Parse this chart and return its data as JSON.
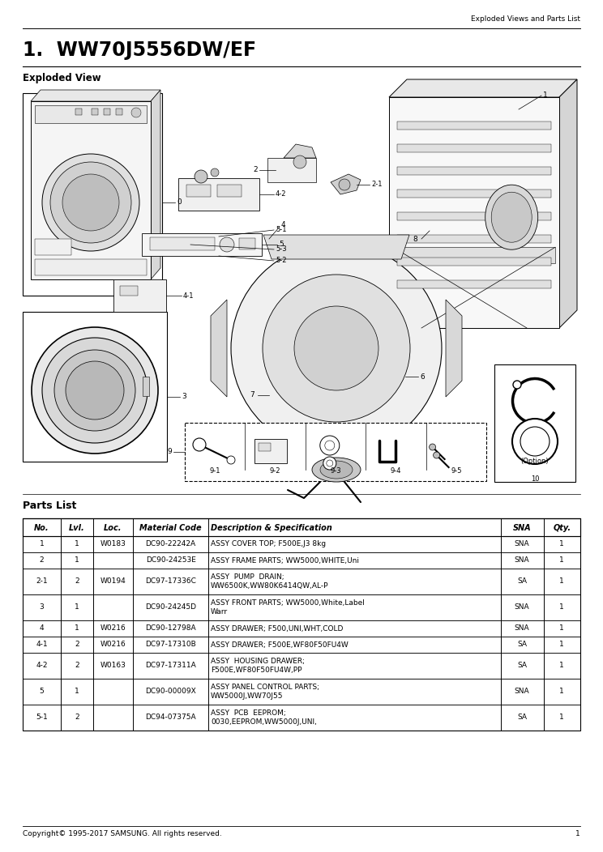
{
  "page_title": "Exploded Views and Parts List",
  "section_number": "1.",
  "model": "WW70J5556DW/EF",
  "exploded_view_label": "Exploded View",
  "parts_list_label": "Parts List",
  "table_headers": [
    "No.",
    "Lvl.",
    "Loc.",
    "Material Code",
    "Description & Specification",
    "SNA",
    "Qty."
  ],
  "table_rows": [
    [
      "1",
      "1",
      "W0183",
      "DC90-22242A",
      "ASSY COVER TOP; F500E,J3 8kg",
      "SNA",
      "1"
    ],
    [
      "2",
      "1",
      "",
      "DC90-24253E",
      "ASSY FRAME PARTS; WW5000,WHITE,Uni",
      "SNA",
      "1"
    ],
    [
      "2-1",
      "2",
      "W0194",
      "DC97-17336C",
      "ASSY  PUMP  DRAIN;\nWW6500K,WW80K6414QW,AL-P",
      "SA",
      "1"
    ],
    [
      "3",
      "1",
      "",
      "DC90-24245D",
      "ASSY FRONT PARTS; WW5000,White,Label\nWarr",
      "SNA",
      "1"
    ],
    [
      "4",
      "1",
      "W0216",
      "DC90-12798A",
      "ASSY DRAWER; F500,UNI,WHT,COLD",
      "SNA",
      "1"
    ],
    [
      "4-1",
      "2",
      "W0216",
      "DC97-17310B",
      "ASSY DRAWER; F500E,WF80F50FU4W",
      "SA",
      "1"
    ],
    [
      "4-2",
      "2",
      "W0163",
      "DC97-17311A",
      "ASSY  HOUSING DRAWER;\nF500E,WF80F50FU4W,PP",
      "SA",
      "1"
    ],
    [
      "5",
      "1",
      "",
      "DC90-00009X",
      "ASSY PANEL CONTROL PARTS;\nWW5000J,WW70J55",
      "SNA",
      "1"
    ],
    [
      "5-1",
      "2",
      "",
      "DC94-07375A",
      "ASSY  PCB  EEPROM;\n0030,EEPROM,WW5000J,UNI,",
      "SA",
      "1"
    ]
  ],
  "footer_text": "Copyright© 1995-2017 SAMSUNG. All rights reserved.",
  "footer_page": "1",
  "bg_color": "#ffffff"
}
